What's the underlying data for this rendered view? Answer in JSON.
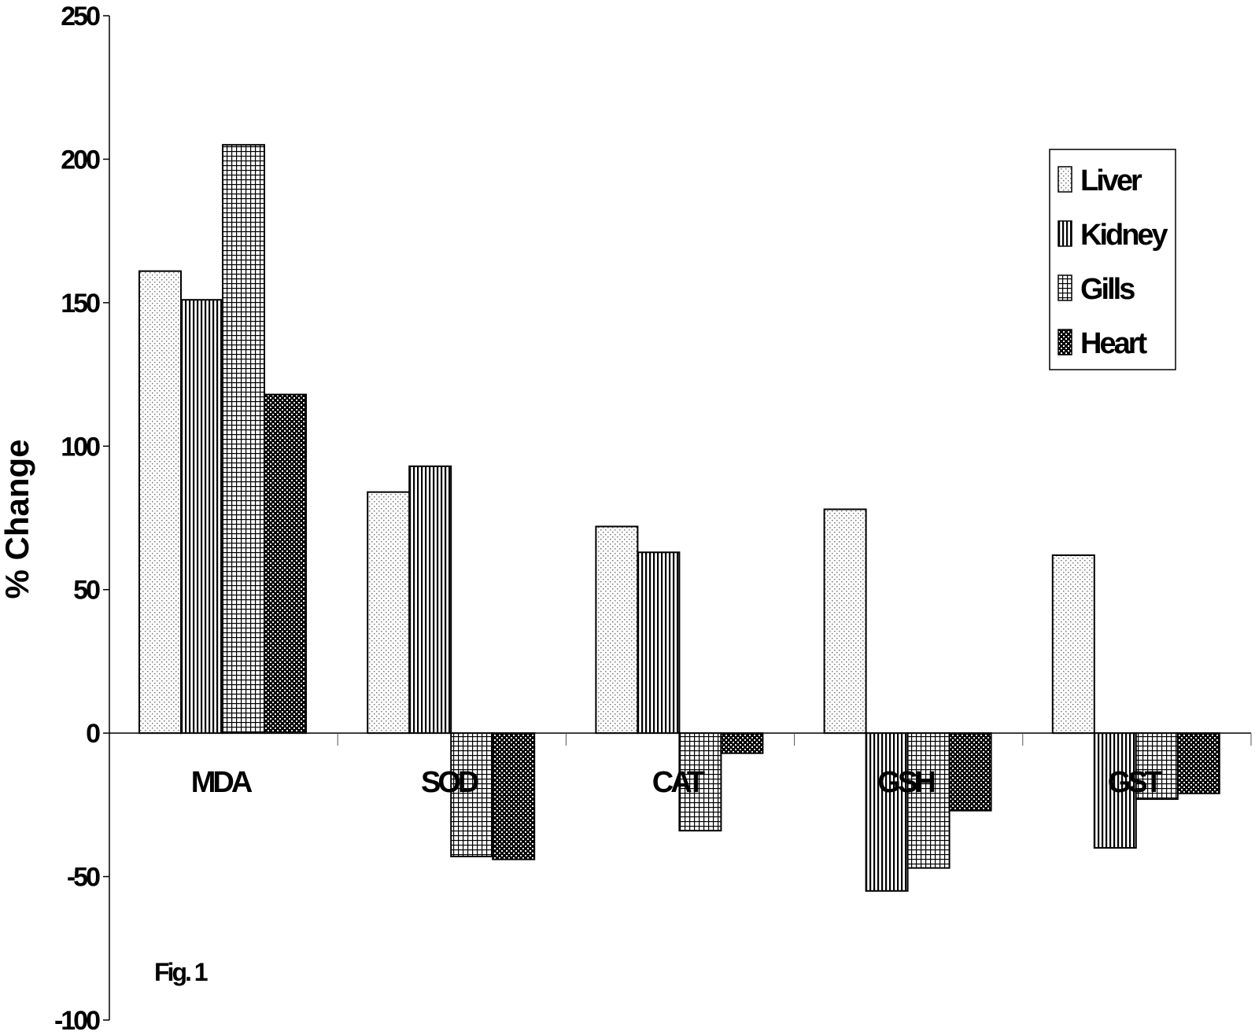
{
  "chart_data": {
    "type": "bar",
    "categories": [
      "MDA",
      "SOD",
      "CAT",
      "GSH",
      "GST"
    ],
    "series": [
      {
        "name": "Liver",
        "values": [
          161,
          84,
          72,
          78,
          62
        ],
        "pattern": "dots-light"
      },
      {
        "name": "Kidney",
        "values": [
          151,
          93,
          63,
          -55,
          -40
        ],
        "pattern": "vertical-lines"
      },
      {
        "name": "Gills",
        "values": [
          205,
          -43,
          -34,
          -47,
          -23
        ],
        "pattern": "grid"
      },
      {
        "name": "Heart",
        "values": [
          118,
          -44,
          -7,
          -27,
          -21
        ],
        "pattern": "checker-dark"
      }
    ],
    "ylabel": "% Change",
    "xlabel": "",
    "ylim": [
      -100,
      250
    ],
    "yticks": [
      250,
      200,
      150,
      100,
      50,
      0,
      -50,
      -100
    ],
    "ytick_labels": [
      "250",
      "200",
      "150",
      "100",
      "50",
      "0",
      "-50",
      "-100"
    ],
    "legend_position": "top-right",
    "annotation": "Fig. 1",
    "grid": false,
    "colors": {
      "stroke": "#000000",
      "background": "#ffffff"
    }
  }
}
